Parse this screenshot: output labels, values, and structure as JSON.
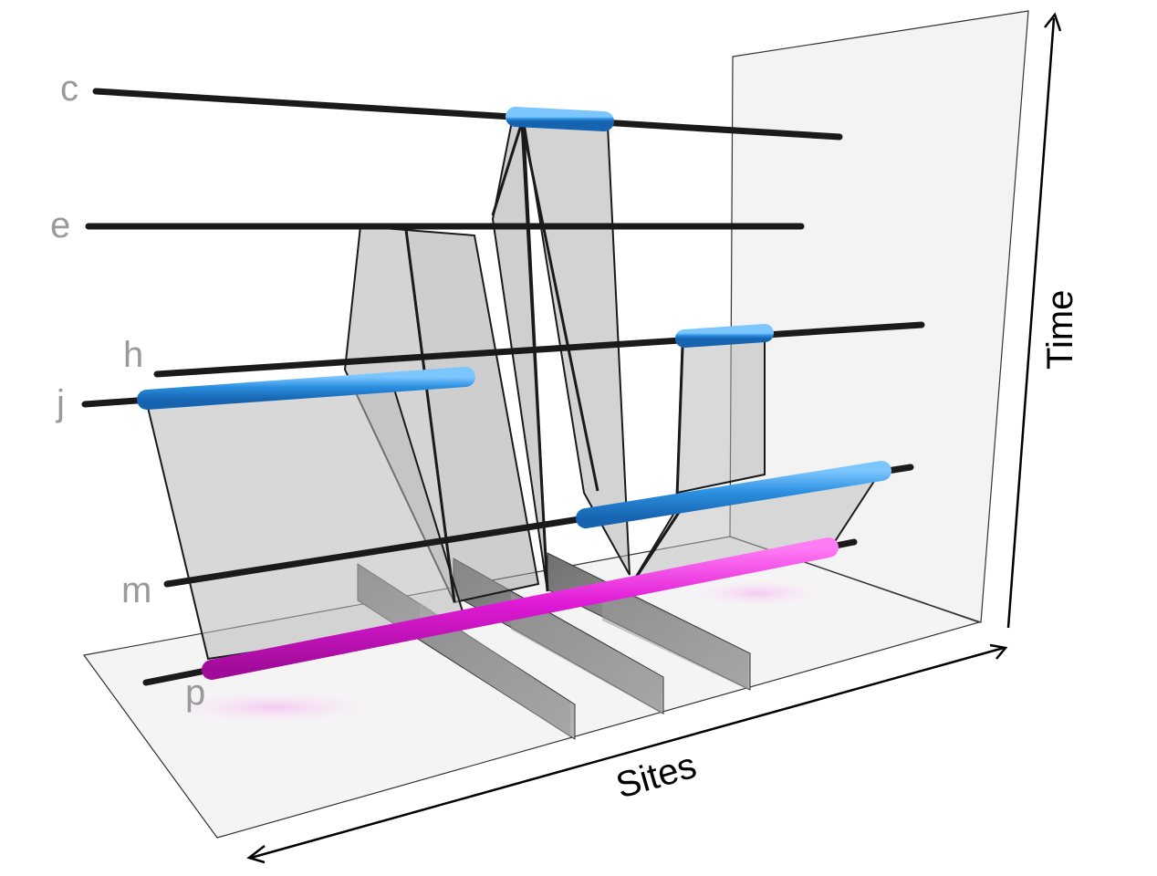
{
  "diagram": {
    "labels": {
      "c": "c",
      "e": "e",
      "h": "h",
      "j": "j",
      "m": "m",
      "p": "p"
    },
    "axes": {
      "x": "Sites",
      "y": "Time"
    },
    "colors": {
      "lineage": "#1a1a1a",
      "segment_blue": "#2b8fe0",
      "segment_magenta": "#e01ad6",
      "ribbon": "#b8b8b8",
      "sample_wall": "#8c8c8c",
      "plane": "#f0f0f0",
      "label": "#9a9a9a"
    }
  }
}
